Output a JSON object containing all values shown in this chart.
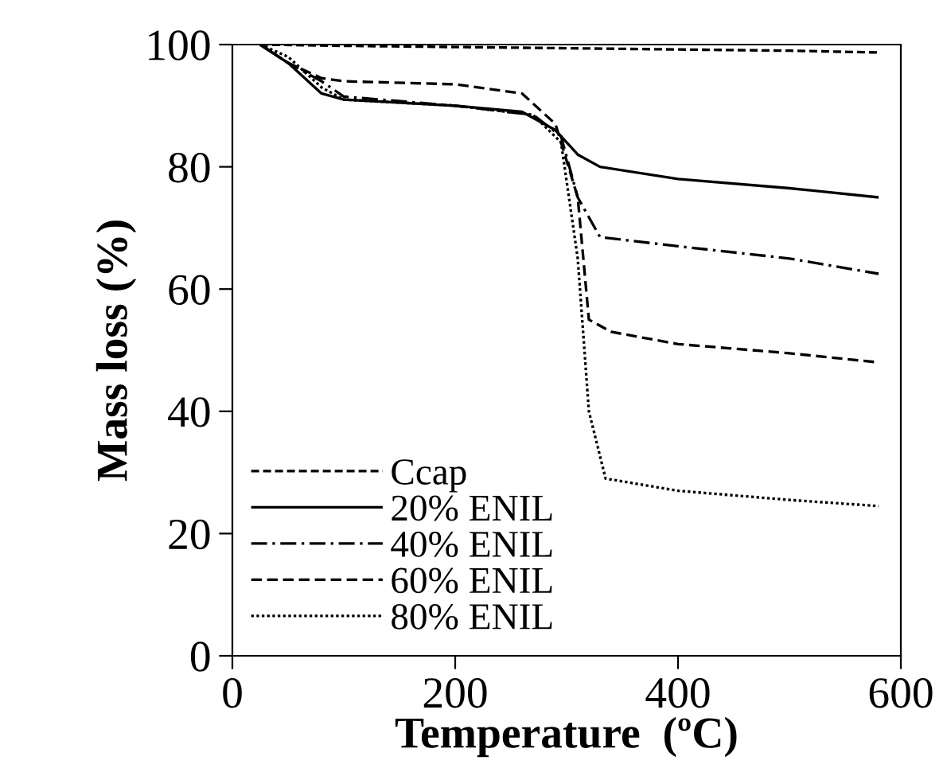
{
  "chart_data": {
    "type": "line",
    "xlabel": "Temperature  (ºC)",
    "ylabel": "Mass loss (%)",
    "xlim": [
      0,
      600
    ],
    "ylim": [
      0,
      100
    ],
    "xticks": [
      0,
      200,
      400,
      600
    ],
    "yticks": [
      0,
      20,
      40,
      60,
      80,
      100
    ],
    "grid": false,
    "legend": "bottom left",
    "marker": "none",
    "series": [
      {
        "name": "Ccap",
        "color": "#000000",
        "line_style": "dashed",
        "x": [
          25,
          100,
          200,
          300,
          400,
          500,
          580
        ],
        "values": [
          100,
          99.8,
          99.6,
          99.4,
          99.2,
          99,
          98.7
        ]
      },
      {
        "name": "20% ENIL",
        "color": "#000000",
        "line_style": "solid",
        "x": [
          25,
          50,
          80,
          100,
          200,
          260,
          290,
          310,
          330,
          400,
          500,
          580
        ],
        "values": [
          100,
          97,
          92,
          91,
          90,
          89,
          86,
          82,
          80,
          78,
          76.5,
          75
        ]
      },
      {
        "name": "40% ENIL",
        "color": "#000000",
        "line_style": "dashdot",
        "x": [
          25,
          50,
          80,
          100,
          200,
          270,
          295,
          310,
          330,
          400,
          500,
          580
        ],
        "values": [
          100,
          97,
          94,
          91.5,
          90,
          88.5,
          85,
          75,
          68.5,
          67,
          65,
          62.5
        ]
      },
      {
        "name": "60% ENIL",
        "color": "#000000",
        "line_style": "dashed",
        "x": [
          25,
          50,
          80,
          100,
          200,
          260,
          290,
          310,
          320,
          340,
          400,
          500,
          580
        ],
        "values": [
          100,
          97,
          94.5,
          94,
          93.5,
          92,
          87,
          75,
          55,
          53,
          51,
          49.5,
          48
        ]
      },
      {
        "name": "80% ENIL",
        "color": "#000000",
        "line_style": "dotted",
        "x": [
          25,
          50,
          80,
          100,
          200,
          270,
          295,
          310,
          320,
          335,
          400,
          500,
          580
        ],
        "values": [
          100,
          98,
          93,
          91,
          90,
          88.5,
          84,
          65,
          40,
          29,
          27,
          25.5,
          24.5
        ]
      }
    ]
  }
}
